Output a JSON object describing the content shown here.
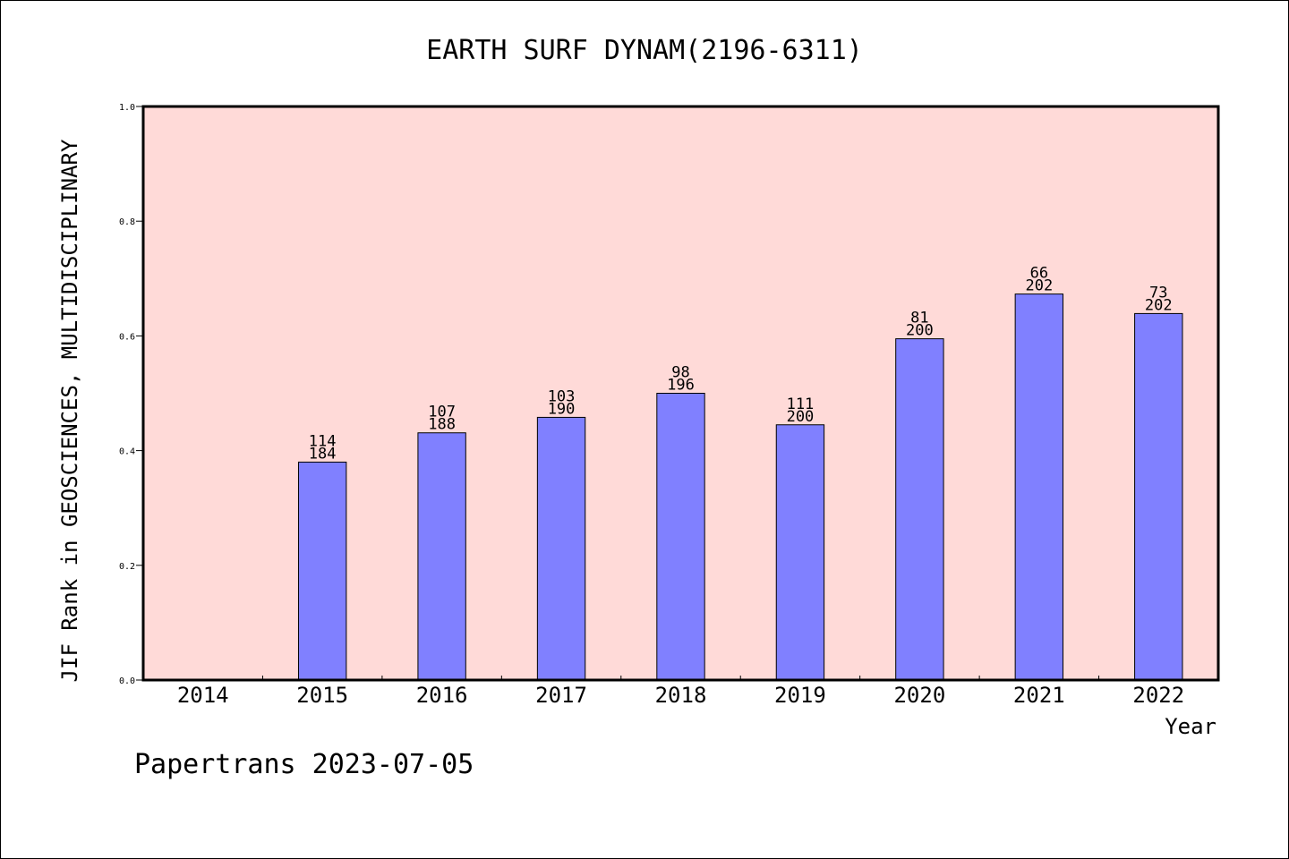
{
  "chart_data": {
    "type": "bar",
    "title": "EARTH SURF DYNAM(2196-6311)",
    "xlabel": "Year",
    "ylabel": "JIF Rank in GEOSCIENCES, MULTIDISCIPLINARY",
    "ylim": [
      0,
      1.0
    ],
    "yticks": [
      "0.0",
      "0.2",
      "0.4",
      "0.6",
      "0.8",
      "1.0"
    ],
    "ytick_values": [
      0,
      0.2,
      0.4,
      0.6,
      0.8,
      1.0
    ],
    "categories": [
      "2014",
      "2015",
      "2016",
      "2017",
      "2018",
      "2019",
      "2020",
      "2021",
      "2022"
    ],
    "values": [
      null,
      0.38,
      0.431,
      0.458,
      0.5,
      0.445,
      0.595,
      0.673,
      0.639
    ],
    "rank": [
      null,
      "114",
      "107",
      "103",
      "98",
      "111",
      "81",
      "66",
      "73"
    ],
    "total": [
      null,
      "184",
      "188",
      "190",
      "196",
      "200",
      "200",
      "202",
      "202"
    ],
    "grid": false,
    "legend": "none",
    "colors": {
      "plot_bg": "#ffdad8",
      "bar_fill": "#8080ff",
      "bar_stroke": "#000000"
    }
  },
  "footer": {
    "credit": "Papertrans 2023-07-05"
  }
}
